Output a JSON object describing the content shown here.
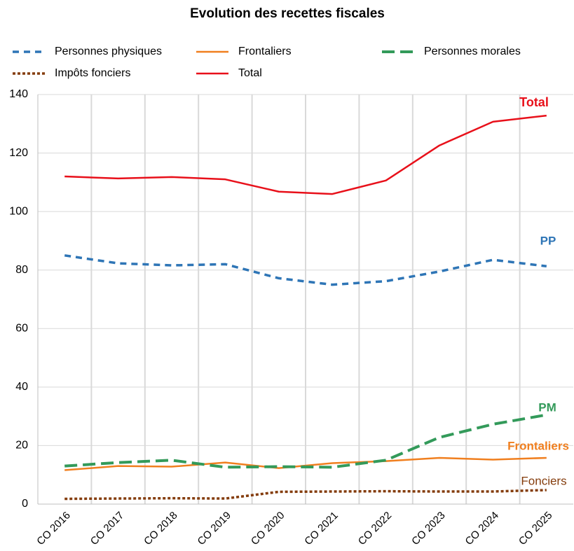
{
  "chart_data": {
    "type": "line",
    "title": "Evolution des recettes fiscales",
    "categories": [
      "CO 2016",
      "CO 2017",
      "CO 2018",
      "CO 2019",
      "CO 2020",
      "CO 2021",
      "CO 2022",
      "CO 2023",
      "CO 2024",
      "CO 2025"
    ],
    "series": [
      {
        "name": "Personnes physiques",
        "color": "#2e75b6",
        "style": "dash",
        "values": [
          85,
          82.3,
          81.6,
          82,
          77.2,
          75,
          76.2,
          79.5,
          83.5,
          81.3
        ]
      },
      {
        "name": "Frontaliers",
        "color": "#f07f1f",
        "style": "solid",
        "values": [
          11.6,
          13,
          12.8,
          14.2,
          12.3,
          14,
          14.7,
          15.8,
          15.2,
          15.8
        ]
      },
      {
        "name": "Personnes morales",
        "color": "#339a5a",
        "style": "longdash",
        "values": [
          13,
          14.2,
          15,
          12.6,
          12.8,
          12.6,
          15,
          22.8,
          27.3,
          30.5
        ]
      },
      {
        "name": "Impôts fonciers",
        "color": "#843c0c",
        "style": "dot",
        "values": [
          1.8,
          1.9,
          2,
          1.9,
          4.2,
          4.3,
          4.4,
          4.3,
          4.3,
          4.8
        ]
      },
      {
        "name": "Total",
        "color": "#e8101a",
        "style": "solid",
        "values": [
          112,
          111.3,
          111.8,
          111,
          106.8,
          106,
          110.6,
          122.6,
          130.7,
          132.8
        ]
      }
    ],
    "annotations": [
      {
        "text": "Total",
        "color": "#e8101a"
      },
      {
        "text": "PP",
        "color": "#2e75b6"
      },
      {
        "text": "PM",
        "color": "#339a5a"
      },
      {
        "text": "Frontaliers",
        "color": "#f07f1f"
      },
      {
        "text": "Fonciers",
        "color": "#843c0c"
      }
    ],
    "ylim": [
      0,
      140
    ],
    "yticks": [
      0,
      20,
      40,
      60,
      80,
      100,
      120,
      140
    ],
    "grid": true
  }
}
